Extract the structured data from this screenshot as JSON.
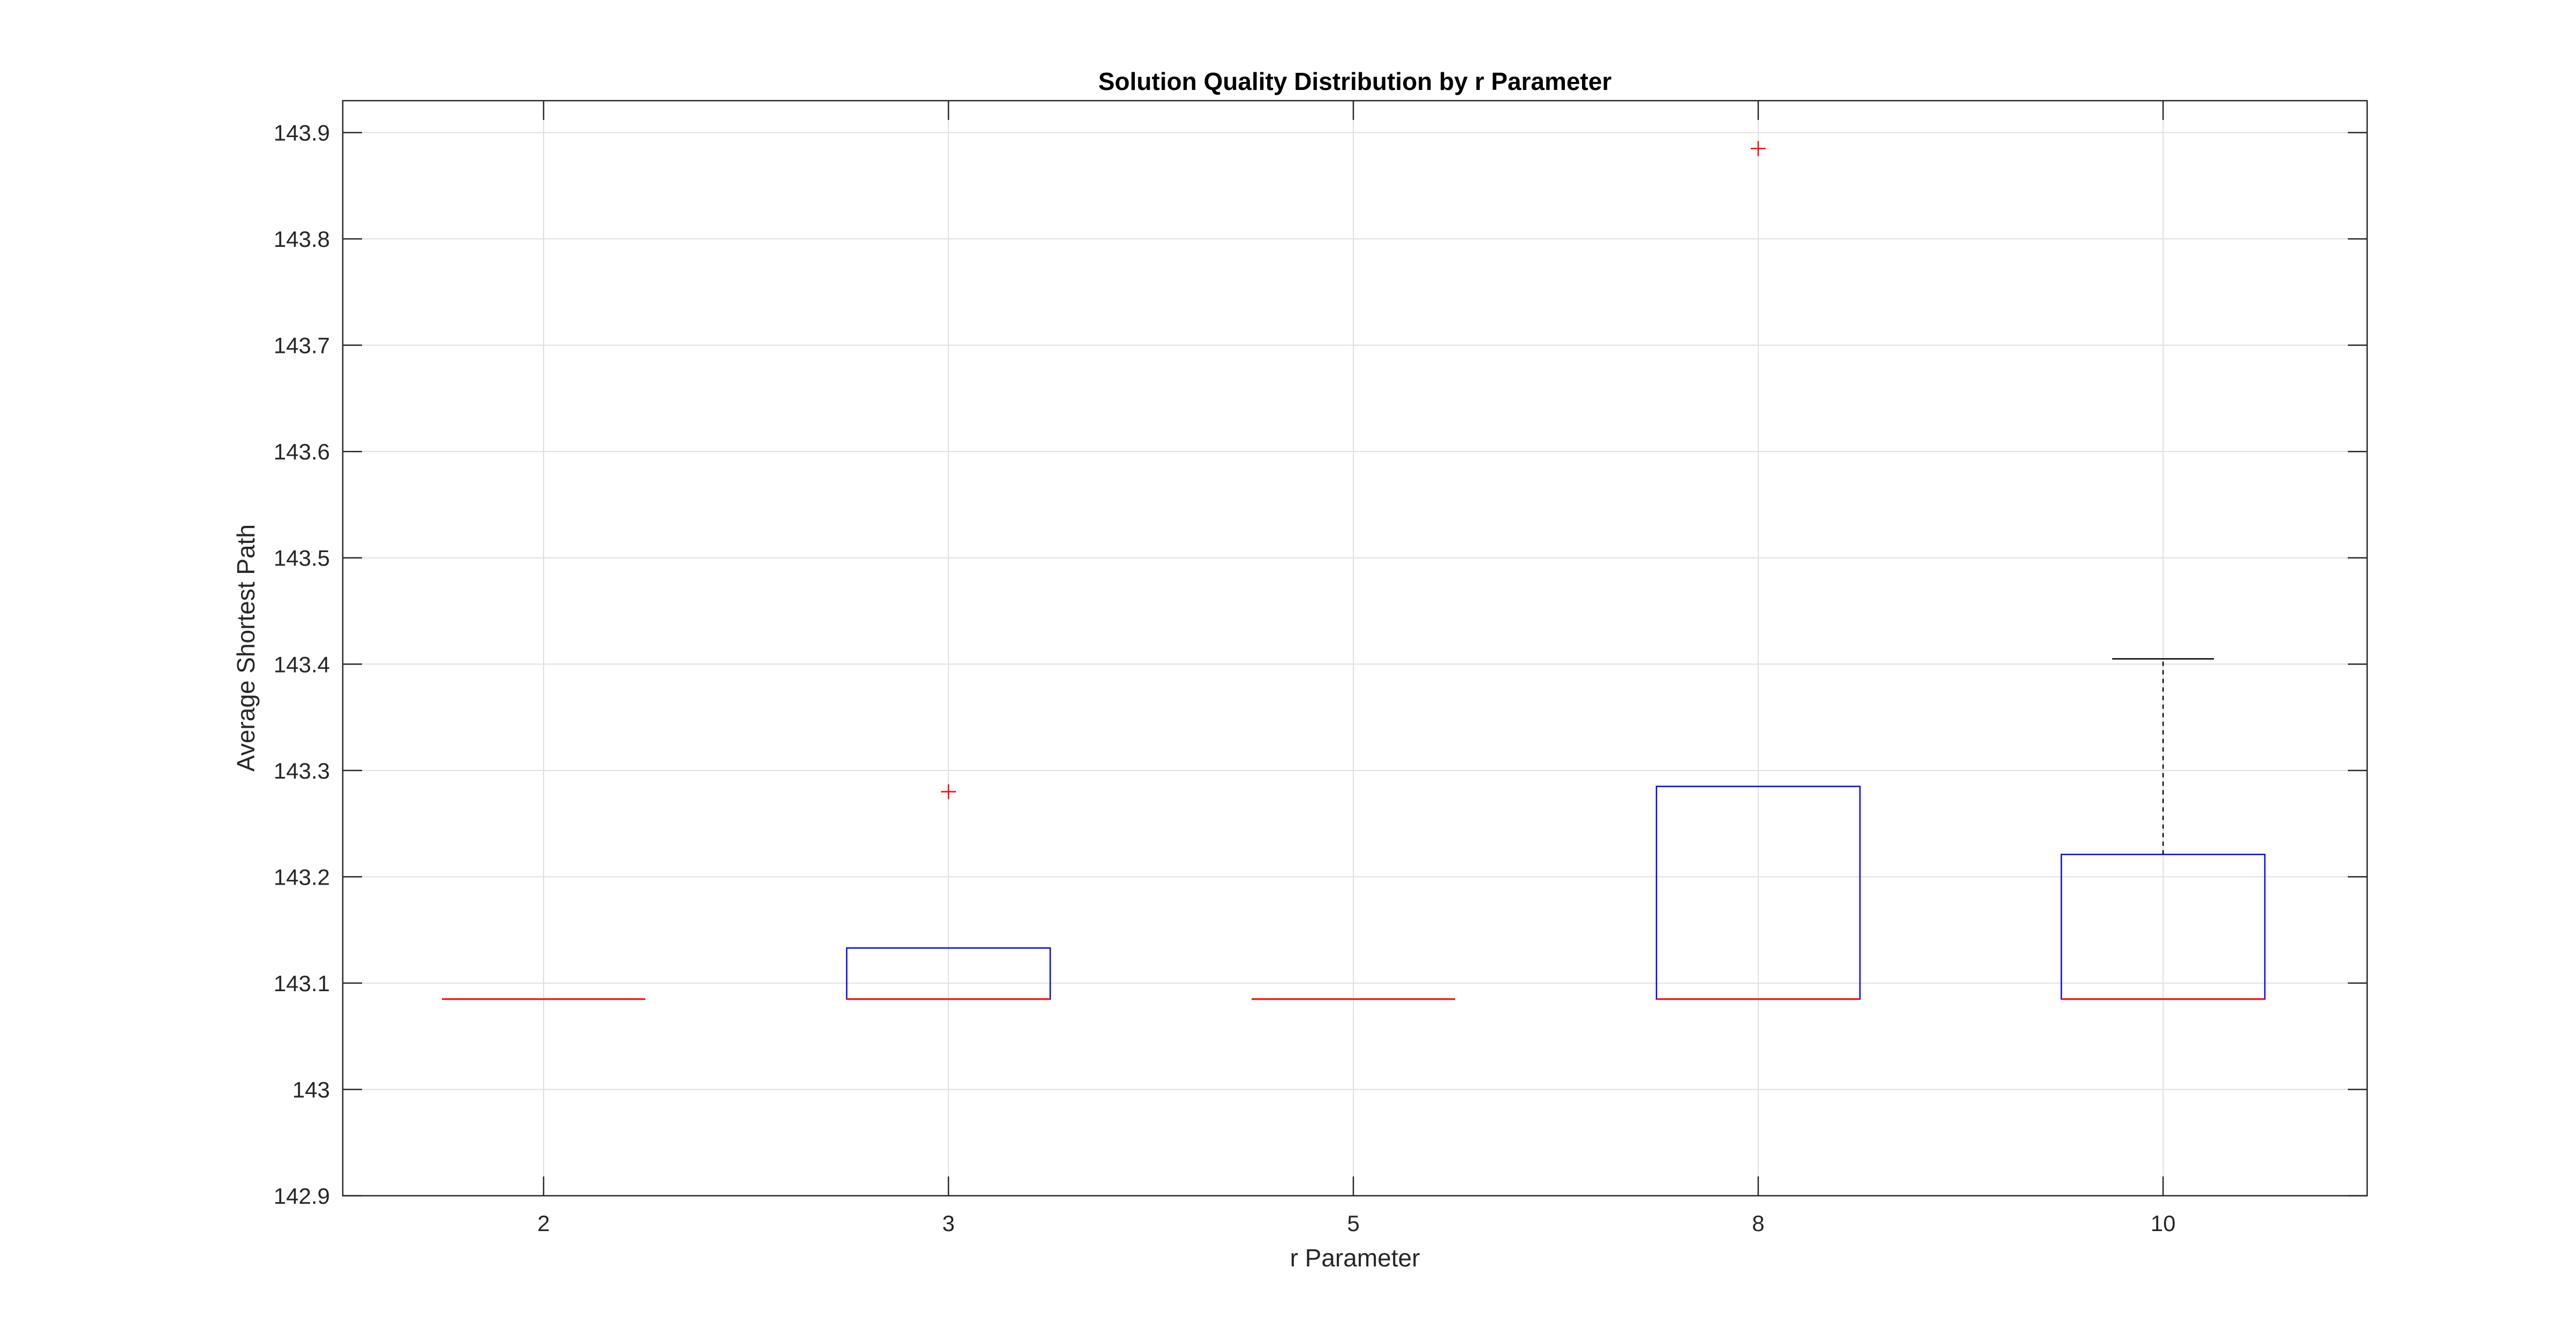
{
  "chart_data": {
    "type": "boxplot",
    "title": "Solution Quality Distribution by r Parameter",
    "xlabel": "r Parameter",
    "ylabel": "Average Shortest Path",
    "categories": [
      "2",
      "3",
      "5",
      "8",
      "10"
    ],
    "ylim": [
      142.9,
      143.93
    ],
    "yticks": [
      142.9,
      143,
      143.1,
      143.2,
      143.3,
      143.4,
      143.5,
      143.6,
      143.7,
      143.8,
      143.9
    ],
    "ytick_labels": [
      "142.9",
      "143",
      "143.1",
      "143.2",
      "143.3",
      "143.4",
      "143.5",
      "143.6",
      "143.7",
      "143.8",
      "143.9"
    ],
    "grid": true,
    "boxes": [
      {
        "category": "2",
        "whisker_low": 143.085,
        "q1": 143.085,
        "median": 143.085,
        "q3": 143.085,
        "whisker_high": 143.085,
        "outliers": []
      },
      {
        "category": "3",
        "whisker_low": 143.085,
        "q1": 143.085,
        "median": 143.085,
        "q3": 143.133,
        "whisker_high": 143.133,
        "outliers": [
          143.28
        ]
      },
      {
        "category": "5",
        "whisker_low": 143.085,
        "q1": 143.085,
        "median": 143.085,
        "q3": 143.085,
        "whisker_high": 143.085,
        "outliers": []
      },
      {
        "category": "8",
        "whisker_low": 143.085,
        "q1": 143.085,
        "median": 143.085,
        "q3": 143.285,
        "whisker_high": 143.285,
        "outliers": [
          143.885
        ]
      },
      {
        "category": "10",
        "whisker_low": 143.085,
        "q1": 143.085,
        "median": 143.085,
        "q3": 143.221,
        "whisker_high": 143.405,
        "outliers": []
      }
    ],
    "colors": {
      "box": "#0000ff",
      "median": "#ff0000",
      "outlier": "#ff0000",
      "whisker": "#000000",
      "grid": "#dfdfdf",
      "axis": "#262626"
    }
  }
}
